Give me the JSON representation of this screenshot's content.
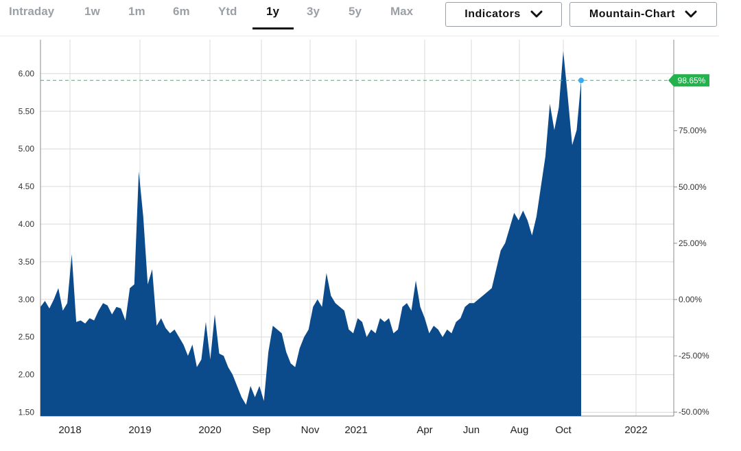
{
  "toolbar": {
    "range_tabs": [
      {
        "label": "Intraday",
        "active": false
      },
      {
        "label": "1w",
        "active": false
      },
      {
        "label": "1m",
        "active": false
      },
      {
        "label": "6m",
        "active": false
      },
      {
        "label": "Ytd",
        "active": false
      },
      {
        "label": "1y",
        "active": true
      },
      {
        "label": "3y",
        "active": false
      },
      {
        "label": "5y",
        "active": false
      },
      {
        "label": "Max",
        "active": false
      }
    ],
    "indicators_label": "Indicators",
    "chart_type_label": "Mountain-Chart",
    "dropdown_icon": "chevron-down-icon"
  },
  "chart_data": {
    "type": "area",
    "colors": {
      "fill": "#0b4a8b",
      "reference_line": "#2bbd64",
      "badge": "#23b24b",
      "last_point": "#39a9f0",
      "grid": "#d9d9d9"
    },
    "y_left_ticks": [
      "1.50",
      "2.00",
      "2.50",
      "3.00",
      "3.50",
      "4.00",
      "4.50",
      "5.00",
      "5.50",
      "6.00"
    ],
    "y_right_ticks": [
      "-50.00%",
      "-25.00%",
      "0.00%",
      "25.00%",
      "50.00%",
      "75.00%"
    ],
    "x_tick_labels": [
      "2018",
      "2019",
      "2020",
      "Sep",
      "Nov",
      "2021",
      "Apr",
      "Jun",
      "Aug",
      "Oct",
      "2022"
    ],
    "ylim": [
      1.45,
      6.45
    ],
    "last_change_label": "98.65%",
    "last_value": 5.91,
    "series": [
      {
        "values": [
          2.9,
          2.98,
          2.88,
          3.0,
          3.15,
          2.85,
          2.95,
          3.6,
          2.7,
          2.72,
          2.68,
          2.75,
          2.72,
          2.85,
          2.95,
          2.92,
          2.8,
          2.9,
          2.88,
          2.72,
          3.15,
          3.2,
          4.7,
          4.1,
          3.2,
          3.4,
          2.65,
          2.75,
          2.62,
          2.55,
          2.6,
          2.5,
          2.4,
          2.25,
          2.4,
          2.1,
          2.2,
          2.7,
          2.2,
          2.8,
          2.28,
          2.25,
          2.1,
          2.0,
          1.85,
          1.7,
          1.6,
          1.85,
          1.7,
          1.85,
          1.65,
          2.3,
          2.65,
          2.6,
          2.55,
          2.3,
          2.15,
          2.1,
          2.35,
          2.5,
          2.6,
          2.9,
          3.0,
          2.9,
          3.35,
          3.05,
          2.95,
          2.9,
          2.85,
          2.6,
          2.55,
          2.75,
          2.7,
          2.5,
          2.6,
          2.55,
          2.75,
          2.7,
          2.75,
          2.55,
          2.6,
          2.9,
          2.95,
          2.85,
          3.25,
          2.9,
          2.75,
          2.55,
          2.65,
          2.6,
          2.5,
          2.6,
          2.55,
          2.7,
          2.75,
          2.9,
          2.95,
          2.95,
          3.0,
          3.05,
          3.1,
          3.15,
          3.4,
          3.65,
          3.75,
          3.95,
          4.15,
          4.05,
          4.18,
          4.05,
          3.85,
          4.1,
          4.5,
          4.9,
          5.6,
          5.25,
          5.55,
          6.3,
          5.7,
          5.05,
          5.25,
          5.91
        ]
      }
    ]
  }
}
